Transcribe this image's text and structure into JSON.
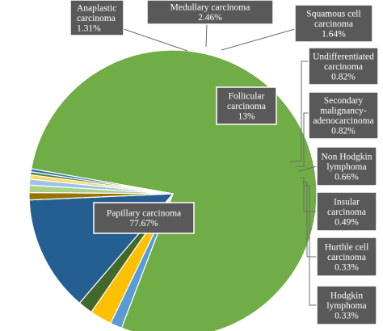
{
  "chart_data": {
    "type": "pie",
    "title": "",
    "slices": [
      {
        "label": "Papillary carcinoma",
        "value_text": "77.67%",
        "value": 77.67,
        "color": "#70ad47"
      },
      {
        "label": "Anaplastic carcinoma",
        "value_text": "1.31%",
        "value": 1.31,
        "color": "#5b9bd5"
      },
      {
        "label": "Medullary carcinoma",
        "value_text": "2.46%",
        "value": 2.46,
        "color": "#ffc000"
      },
      {
        "label": "Squamous cell carcinoma",
        "value_text": "1.64%",
        "value": 1.64,
        "color": "#43682b"
      },
      {
        "label": "Follicular carcinoma",
        "value_text": "13%",
        "value": 13.0,
        "color": "#255e91"
      },
      {
        "label": "Undifferentiated carcinoma",
        "value_text": "0.82%",
        "value": 0.82,
        "color": "#997300"
      },
      {
        "label": "Secondary malignancy-adenocarcinoma",
        "value_text": "0.82%",
        "value": 0.82,
        "color": "#a9d18e"
      },
      {
        "label": "Non Hodgkin lymphoma",
        "value_text": "0.66%",
        "value": 0.66,
        "color": "#9dc3e6"
      },
      {
        "label": "Insular carcinoma",
        "value_text": "0.49%",
        "value": 0.49,
        "color": "#ffd966"
      },
      {
        "label": "Hurthle cell carcinoma",
        "value_text": "0.33%",
        "value": 0.33,
        "color": "#548235"
      },
      {
        "label": "Hodgkin lymphoma",
        "value_text": "0.33%",
        "value": 0.33,
        "color": "#2e75b6"
      }
    ]
  },
  "labels": {
    "papillary": [
      "Papillary carcinoma",
      "77.67%"
    ],
    "anaplastic": [
      "Anaplastic",
      "carcinoma",
      "1.31%"
    ],
    "medullary": [
      "Medullary carcinoma",
      "2.46%"
    ],
    "squamous": [
      "Squamous cell",
      "carcinoma",
      "1.64%"
    ],
    "follicular": [
      "Follicular",
      "carcinoma",
      "13%"
    ],
    "undifferentiated": [
      "Undifferentiated",
      "carcinoma",
      "0.82%"
    ],
    "secondary": [
      "Secondary",
      "malignancy-",
      "adenocarcinoma",
      "0.82%"
    ],
    "nonhodgkin": [
      "Non Hodgkin",
      "lymphoma",
      "0.66%"
    ],
    "insular": [
      "Insular",
      "carcinoma",
      "0.49%"
    ],
    "hurthle": [
      "Hurthle cell",
      "carcinoma",
      "0.33%"
    ],
    "hodgkin": [
      "Hodgkin",
      "lymphoma",
      "0.33%"
    ]
  }
}
